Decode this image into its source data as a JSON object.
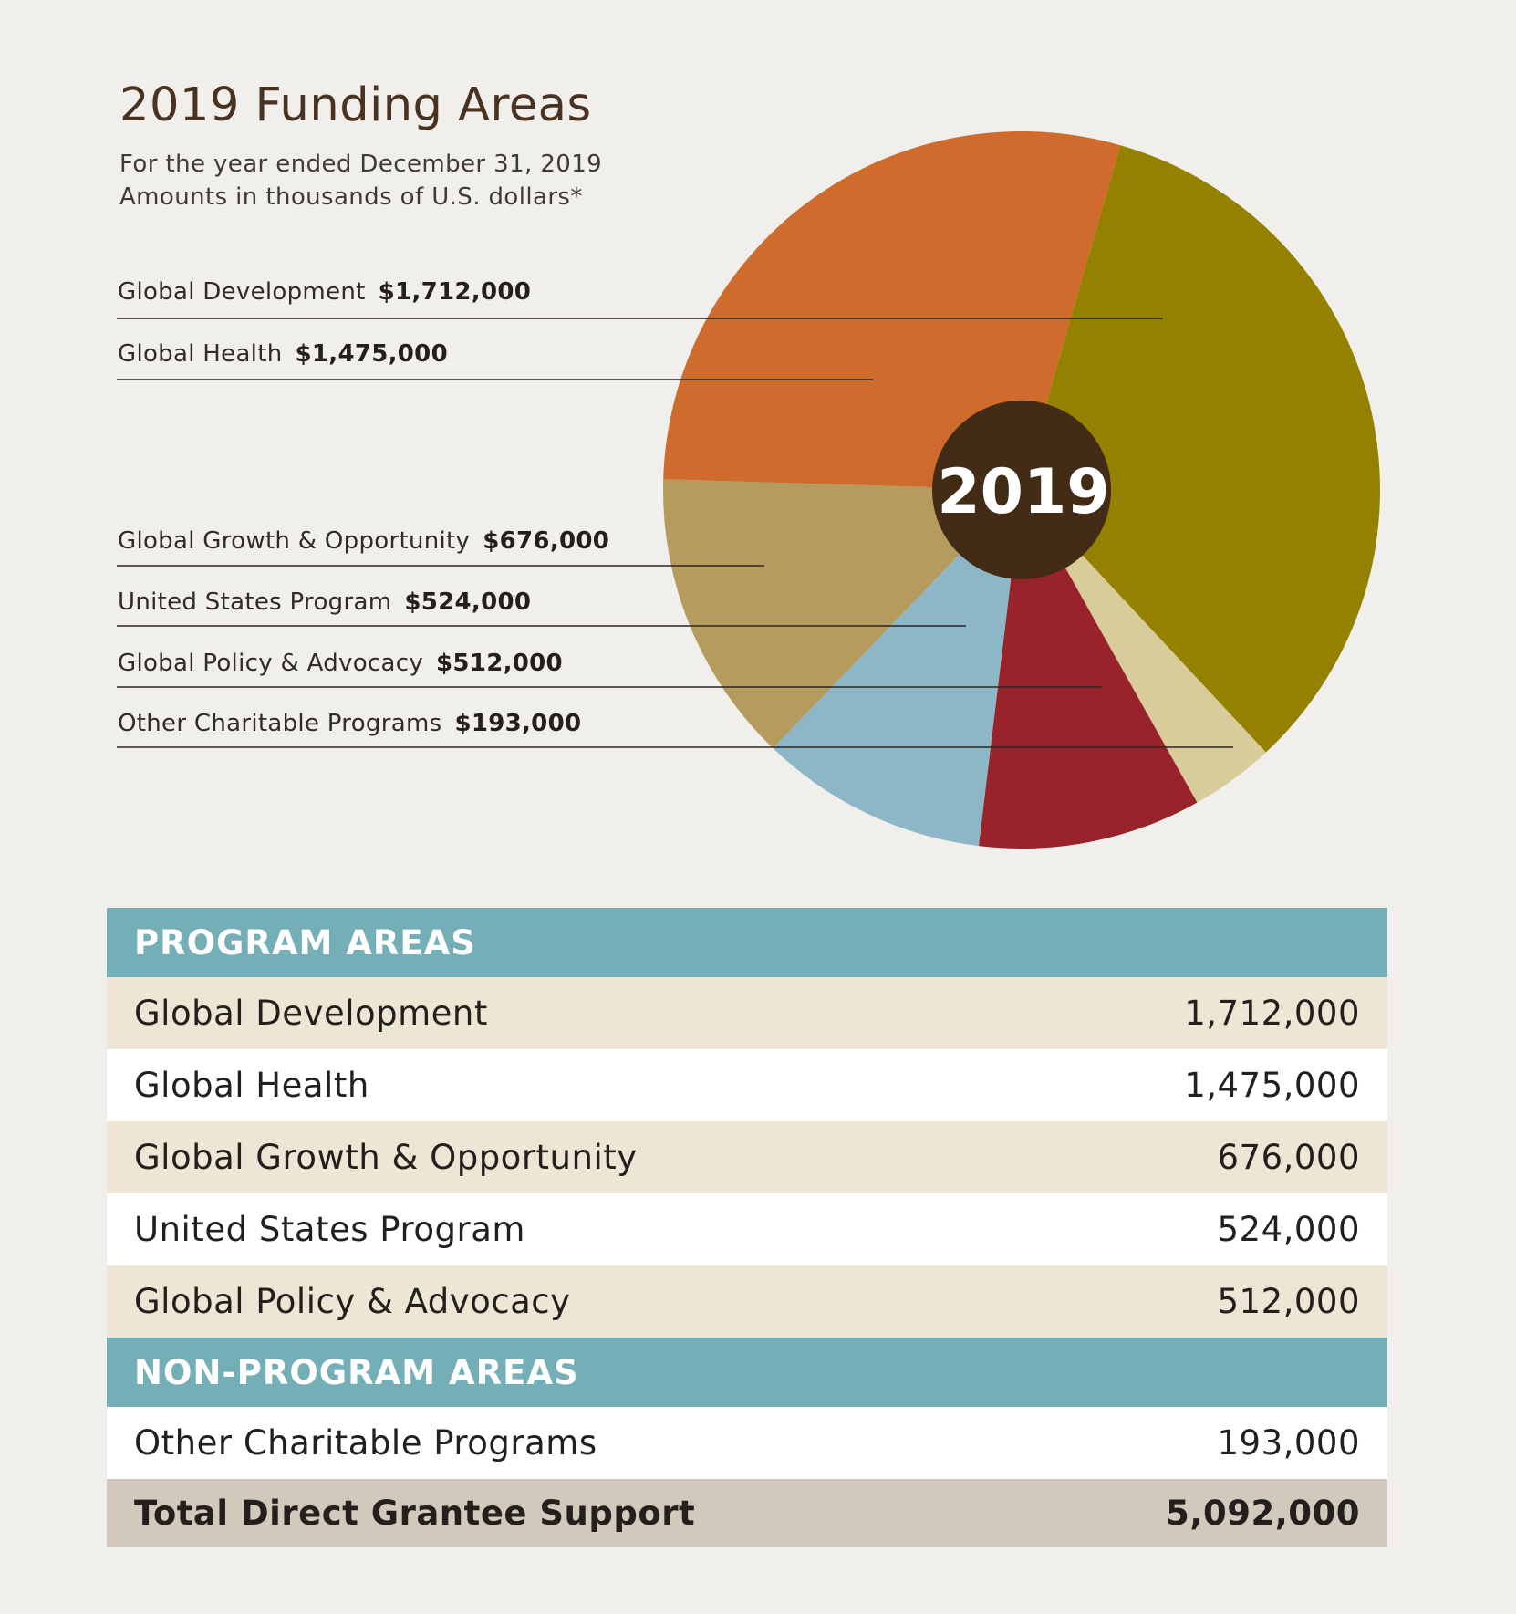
{
  "title": "2019 Funding Areas",
  "subtitle_lines": [
    "For the year ended December 31, 2019",
    "Amounts in thousands of U.S. dollars*"
  ],
  "center_label": "2019",
  "chart_data": {
    "type": "pie",
    "title": "2019 Funding Areas",
    "slices": [
      {
        "name": "Global Development",
        "value": 1712000,
        "label": "$1,712,000",
        "color": "#958100"
      },
      {
        "name": "Other Charitable Programs",
        "value": 193000,
        "label": "$193,000",
        "color": "#d8cd9a"
      },
      {
        "name": "Global Policy & Advocacy",
        "value": 512000,
        "label": "$512,000",
        "color": "#98232b"
      },
      {
        "name": "United States Program",
        "value": 524000,
        "label": "$524,000",
        "color": "#8db6c6"
      },
      {
        "name": "Global Growth & Opportunity",
        "value": 676000,
        "label": "$676,000",
        "color": "#b69b5e"
      },
      {
        "name": "Global Health",
        "value": 1475000,
        "label": "$1,475,000",
        "color": "#cf6b2c"
      }
    ],
    "center_color": "#432c15",
    "legend_placement": "left, with leader lines"
  },
  "legend": [
    {
      "name": "Global Development",
      "amount": "$1,712,000"
    },
    {
      "name": "Global Health",
      "amount": "$1,475,000"
    },
    {
      "name": "Global Growth & Opportunity",
      "amount": "$676,000"
    },
    {
      "name": "United States Program",
      "amount": "$524,000"
    },
    {
      "name": "Global Policy & Advocacy",
      "amount": "$512,000"
    },
    {
      "name": "Other Charitable Programs",
      "amount": "$193,000"
    }
  ],
  "table": {
    "program_header": "PROGRAM AREAS",
    "program_rows": [
      {
        "label": "Global Development",
        "value": "1,712,000"
      },
      {
        "label": "Global Health",
        "value": "1,475,000"
      },
      {
        "label": "Global Growth & Opportunity",
        "value": "676,000"
      },
      {
        "label": "United States Program",
        "value": "524,000"
      },
      {
        "label": "Global Policy & Advocacy",
        "value": "512,000"
      }
    ],
    "non_program_header": "NON-PROGRAM AREAS",
    "non_program_rows": [
      {
        "label": "Other Charitable Programs",
        "value": "193,000"
      }
    ],
    "total": {
      "label": "Total Direct Grantee Support",
      "value": "5,092,000"
    }
  },
  "colors": {
    "background": "#f1efeb",
    "header_teal": "#74afb7",
    "row_tan": "#ede6d4",
    "total_row": "#d2c9bd",
    "title_brown": "#4a3220"
  }
}
